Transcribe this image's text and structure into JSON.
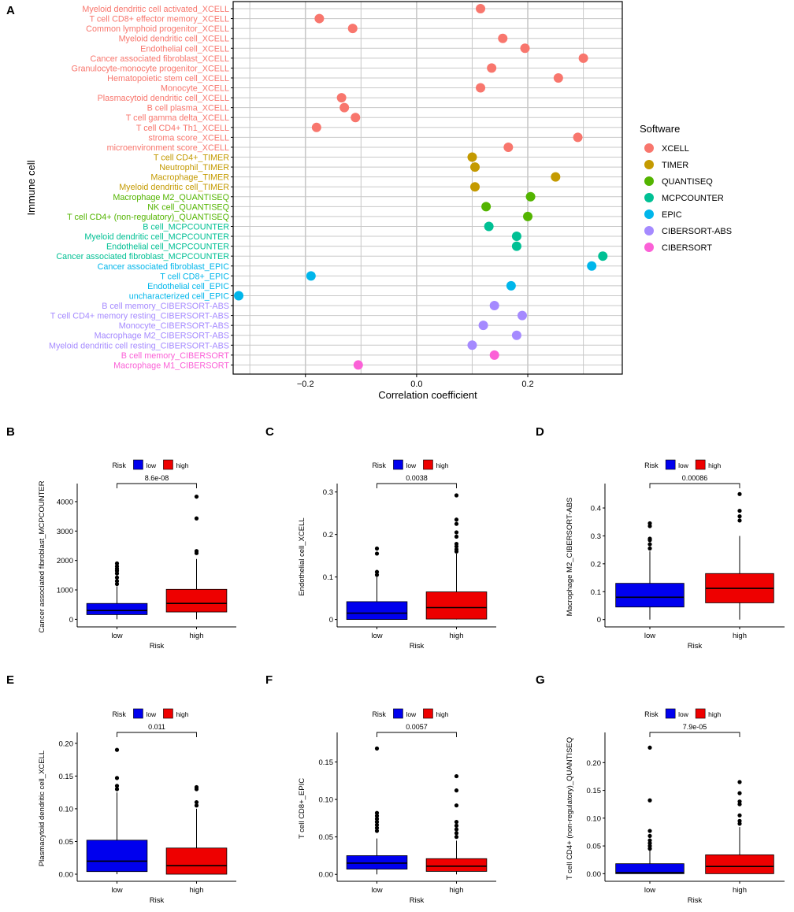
{
  "colors": {
    "XCELL": "#F8766D",
    "TIMER": "#C49A00",
    "QUANTISEQ": "#53B400",
    "MCPCOUNTER": "#00C094",
    "EPIC": "#00B6EB",
    "CIBERSORT-ABS": "#A58AFF",
    "CIBERSORT": "#FB61D7",
    "low": "#0000EE",
    "high": "#EE0000"
  },
  "chart_data": [
    {
      "panel": "A",
      "type": "scatter",
      "xlabel": "Correlation coefficient",
      "ylabel": "Immune cell",
      "xlim": [
        -0.33,
        0.37
      ],
      "xticks": [
        -0.2,
        0.0,
        0.2
      ],
      "xtick_labels": [
        "−0.2",
        "0.0",
        "0.2"
      ],
      "legend_title": "Software",
      "legend_entries": [
        "XCELL",
        "TIMER",
        "QUANTISEQ",
        "MCPCOUNTER",
        "EPIC",
        "CIBERSORT-ABS",
        "CIBERSORT"
      ],
      "points": [
        {
          "cell": "Myeloid dendritic cell activated_XCELL",
          "software": "XCELL",
          "value": 0.115
        },
        {
          "cell": "T cell CD8+ effector memory_XCELL",
          "software": "XCELL",
          "value": -0.175
        },
        {
          "cell": "Common lymphoid progenitor_XCELL",
          "software": "XCELL",
          "value": -0.115
        },
        {
          "cell": "Myeloid dendritic cell_XCELL",
          "software": "XCELL",
          "value": 0.155
        },
        {
          "cell": "Endothelial cell_XCELL",
          "software": "XCELL",
          "value": 0.195
        },
        {
          "cell": "Cancer associated fibroblast_XCELL",
          "software": "XCELL",
          "value": 0.3
        },
        {
          "cell": "Granulocyte-monocyte progenitor_XCELL",
          "software": "XCELL",
          "value": 0.135
        },
        {
          "cell": "Hematopoietic stem cell_XCELL",
          "software": "XCELL",
          "value": 0.255
        },
        {
          "cell": "Monocyte_XCELL",
          "software": "XCELL",
          "value": 0.115
        },
        {
          "cell": "Plasmacytoid dendritic cell_XCELL",
          "software": "XCELL",
          "value": -0.135
        },
        {
          "cell": "B cell plasma_XCELL",
          "software": "XCELL",
          "value": -0.13
        },
        {
          "cell": "T cell gamma delta_XCELL",
          "software": "XCELL",
          "value": -0.11
        },
        {
          "cell": "T cell CD4+ Th1_XCELL",
          "software": "XCELL",
          "value": -0.18
        },
        {
          "cell": "stroma score_XCELL",
          "software": "XCELL",
          "value": 0.29
        },
        {
          "cell": "microenvironment score_XCELL",
          "software": "XCELL",
          "value": 0.165
        },
        {
          "cell": "T cell CD4+_TIMER",
          "software": "TIMER",
          "value": 0.1
        },
        {
          "cell": "Neutrophil_TIMER",
          "software": "TIMER",
          "value": 0.105
        },
        {
          "cell": "Macrophage_TIMER",
          "software": "TIMER",
          "value": 0.25
        },
        {
          "cell": "Myeloid dendritic cell_TIMER",
          "software": "TIMER",
          "value": 0.105
        },
        {
          "cell": "Macrophage M2_QUANTISEQ",
          "software": "QUANTISEQ",
          "value": 0.205
        },
        {
          "cell": "NK cell_QUANTISEQ",
          "software": "QUANTISEQ",
          "value": 0.125
        },
        {
          "cell": "T cell CD4+ (non-regulatory)_QUANTISEQ",
          "software": "QUANTISEQ",
          "value": 0.2
        },
        {
          "cell": "B cell_MCPCOUNTER",
          "software": "MCPCOUNTER",
          "value": 0.13
        },
        {
          "cell": "Myeloid dendritic cell_MCPCOUNTER",
          "software": "MCPCOUNTER",
          "value": 0.18
        },
        {
          "cell": "Endothelial cell_MCPCOUNTER",
          "software": "MCPCOUNTER",
          "value": 0.18
        },
        {
          "cell": "Cancer associated fibroblast_MCPCOUNTER",
          "software": "MCPCOUNTER",
          "value": 0.335
        },
        {
          "cell": "Cancer associated fibroblast_EPIC",
          "software": "EPIC",
          "value": 0.315
        },
        {
          "cell": "T cell CD8+_EPIC",
          "software": "EPIC",
          "value": -0.19
        },
        {
          "cell": "Endothelial cell_EPIC",
          "software": "EPIC",
          "value": 0.17
        },
        {
          "cell": "uncharacterized cell_EPIC",
          "software": "EPIC",
          "value": -0.32
        },
        {
          "cell": "B cell memory_CIBERSORT-ABS",
          "software": "CIBERSORT-ABS",
          "value": 0.14
        },
        {
          "cell": "T cell CD4+ memory resting_CIBERSORT-ABS",
          "software": "CIBERSORT-ABS",
          "value": 0.19
        },
        {
          "cell": "Monocyte_CIBERSORT-ABS",
          "software": "CIBERSORT-ABS",
          "value": 0.12
        },
        {
          "cell": "Macrophage M2_CIBERSORT-ABS",
          "software": "CIBERSORT-ABS",
          "value": 0.18
        },
        {
          "cell": "Myeloid dendritic cell resting_CIBERSORT-ABS",
          "software": "CIBERSORT-ABS",
          "value": 0.1
        },
        {
          "cell": "B cell memory_CIBERSORT",
          "software": "CIBERSORT",
          "value": 0.14
        },
        {
          "cell": "Macrophage M1_CIBERSORT",
          "software": "CIBERSORT",
          "value": -0.105
        }
      ]
    },
    {
      "panel": "B",
      "type": "box",
      "ylabel": "Cancer associated fibroblast_MCPCOUNTER",
      "xlabel": "Risk",
      "legend_title": "Risk",
      "legend_entries": [
        "low",
        "high"
      ],
      "ylim": [
        -150,
        4400
      ],
      "yticks": [
        0,
        1000,
        2000,
        3000,
        4000
      ],
      "pvalue": "8.6e-08",
      "groups": [
        {
          "name": "low",
          "whisker_low": 0,
          "q1": 160,
          "median": 300,
          "q3": 540,
          "whisker_high": 1120,
          "outliers": [
            1200,
            1300,
            1420,
            1560,
            1650,
            1720,
            1800,
            1900
          ]
        },
        {
          "name": "high",
          "whisker_low": 0,
          "q1": 250,
          "median": 540,
          "q3": 1020,
          "whisker_high": 2050,
          "outliers": [
            2250,
            2320,
            3430,
            4170
          ]
        }
      ]
    },
    {
      "panel": "C",
      "type": "box",
      "ylabel": "Endothelial cell_XCELL",
      "xlabel": "Risk",
      "legend_title": "Risk",
      "legend_entries": [
        "low",
        "high"
      ],
      "ylim": [
        -0.01,
        0.305
      ],
      "yticks": [
        0.0,
        0.1,
        0.2,
        0.3
      ],
      "pvalue": "0.0038",
      "groups": [
        {
          "name": "low",
          "whisker_low": 0.0,
          "q1": 0.0,
          "median": 0.015,
          "q3": 0.042,
          "whisker_high": 0.1,
          "outliers": [
            0.105,
            0.112,
            0.155,
            0.167
          ]
        },
        {
          "name": "high",
          "whisker_low": 0.0,
          "q1": 0.001,
          "median": 0.028,
          "q3": 0.065,
          "whisker_high": 0.155,
          "outliers": [
            0.16,
            0.165,
            0.172,
            0.178,
            0.195,
            0.205,
            0.225,
            0.235,
            0.292
          ]
        }
      ]
    },
    {
      "panel": "D",
      "type": "box",
      "ylabel": "Macrophage M2_CIBERSORT-ABS",
      "xlabel": "Risk",
      "legend_title": "Risk",
      "legend_entries": [
        "low",
        "high"
      ],
      "ylim": [
        -0.015,
        0.465
      ],
      "yticks": [
        0.0,
        0.1,
        0.2,
        0.3,
        0.4
      ],
      "pvalue": "0.00086",
      "groups": [
        {
          "name": "low",
          "whisker_low": 0.0,
          "q1": 0.045,
          "median": 0.08,
          "q3": 0.13,
          "whisker_high": 0.245,
          "outliers": [
            0.255,
            0.27,
            0.285,
            0.29,
            0.335,
            0.345
          ]
        },
        {
          "name": "high",
          "whisker_low": 0.0,
          "q1": 0.06,
          "median": 0.112,
          "q3": 0.165,
          "whisker_high": 0.3,
          "outliers": [
            0.355,
            0.37,
            0.39,
            0.45
          ]
        }
      ]
    },
    {
      "panel": "E",
      "type": "box",
      "ylabel": "Plasmacytoid dendritic cell_XCELL",
      "xlabel": "Risk",
      "legend_title": "Risk",
      "legend_entries": [
        "low",
        "high"
      ],
      "ylim": [
        -0.006,
        0.207
      ],
      "yticks": [
        0.0,
        0.05,
        0.1,
        0.15,
        0.2
      ],
      "ytick_labels": [
        "0.00",
        "0.05",
        "0.10",
        "0.15",
        "0.20"
      ],
      "pvalue": "0.011",
      "groups": [
        {
          "name": "low",
          "whisker_low": 0.0,
          "q1": 0.004,
          "median": 0.02,
          "q3": 0.052,
          "whisker_high": 0.125,
          "outliers": [
            0.13,
            0.135,
            0.147,
            0.19
          ]
        },
        {
          "name": "high",
          "whisker_low": 0.0,
          "q1": 0.0,
          "median": 0.013,
          "q3": 0.04,
          "whisker_high": 0.1,
          "outliers": [
            0.105,
            0.11,
            0.13,
            0.133
          ]
        }
      ]
    },
    {
      "panel": "F",
      "type": "box",
      "ylabel": "T cell CD8+_EPIC",
      "xlabel": "Risk",
      "legend_title": "Risk",
      "legend_entries": [
        "low",
        "high"
      ],
      "ylim": [
        -0.005,
        0.181
      ],
      "yticks": [
        0.0,
        0.05,
        0.1,
        0.15
      ],
      "ytick_labels": [
        "0.00",
        "0.05",
        "0.10",
        "0.15"
      ],
      "pvalue": "0.0057",
      "groups": [
        {
          "name": "low",
          "whisker_low": 0.0,
          "q1": 0.007,
          "median": 0.015,
          "q3": 0.025,
          "whisker_high": 0.048,
          "outliers": [
            0.058,
            0.062,
            0.066,
            0.07,
            0.074,
            0.078,
            0.082,
            0.168
          ]
        },
        {
          "name": "high",
          "whisker_low": 0.0,
          "q1": 0.004,
          "median": 0.011,
          "q3": 0.021,
          "whisker_high": 0.045,
          "outliers": [
            0.05,
            0.055,
            0.06,
            0.065,
            0.07,
            0.092,
            0.112,
            0.131
          ]
        }
      ]
    },
    {
      "panel": "G",
      "type": "box",
      "ylabel": "T cell CD4+ (non-regulatory)_QUANTISEQ",
      "xlabel": "Risk",
      "legend_title": "Risk",
      "legend_entries": [
        "low",
        "high"
      ],
      "ylim": [
        -0.008,
        0.243
      ],
      "yticks": [
        0.0,
        0.05,
        0.1,
        0.15,
        0.2
      ],
      "ytick_labels": [
        "0.00",
        "0.05",
        "0.10",
        "0.15",
        "0.20"
      ],
      "pvalue": "7.9e-05",
      "groups": [
        {
          "name": "low",
          "whisker_low": 0.0,
          "q1": 0.0,
          "median": 0.002,
          "q3": 0.018,
          "whisker_high": 0.042,
          "outliers": [
            0.045,
            0.05,
            0.055,
            0.06,
            0.068,
            0.077,
            0.132,
            0.227
          ]
        },
        {
          "name": "high",
          "whisker_low": 0.0,
          "q1": 0.0,
          "median": 0.013,
          "q3": 0.034,
          "whisker_high": 0.084,
          "outliers": [
            0.09,
            0.095,
            0.105,
            0.125,
            0.13,
            0.145,
            0.165
          ]
        }
      ]
    }
  ]
}
